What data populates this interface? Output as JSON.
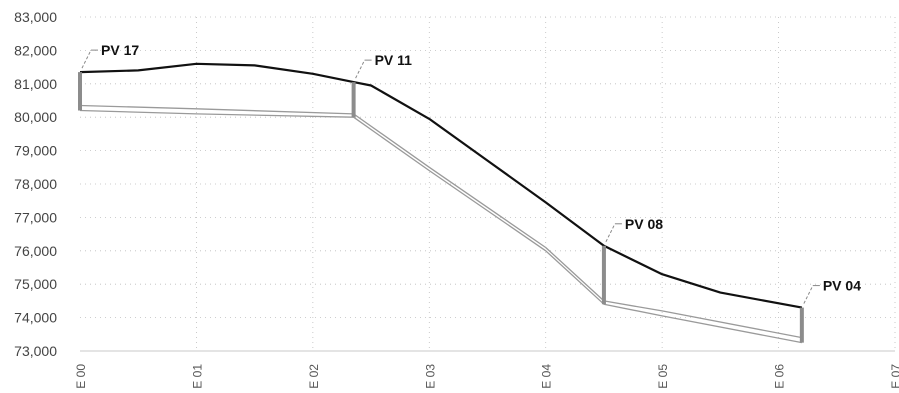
{
  "chart_data": {
    "type": "line",
    "title": "",
    "xlabel": "",
    "ylabel": "",
    "ylim": [
      73000,
      83000
    ],
    "y_ticks": [
      "73,000",
      "74,000",
      "75,000",
      "76,000",
      "77,000",
      "78,000",
      "79,000",
      "80,000",
      "81,000",
      "82,000",
      "83,000"
    ],
    "y_tick_values": [
      73000,
      74000,
      75000,
      76000,
      77000,
      78000,
      79000,
      80000,
      81000,
      82000,
      83000
    ],
    "x_ticks": [
      "E 00",
      "E 01",
      "E 02",
      "E 03",
      "E 04",
      "E 05",
      "E 06",
      "E 07"
    ],
    "x_tick_values": [
      0,
      1,
      2,
      3,
      4,
      5,
      6,
      7
    ],
    "xlim": [
      0,
      7
    ],
    "grid": "vertical-and-horizontal-dotted",
    "series": [
      {
        "role": "top",
        "points": [
          [
            0,
            81350
          ],
          [
            0.5,
            81400
          ],
          [
            1,
            81600
          ],
          [
            1.5,
            81550
          ],
          [
            2,
            81300
          ],
          [
            2.35,
            81050
          ],
          [
            2.5,
            80950
          ],
          [
            3,
            79950
          ],
          [
            3.5,
            78700
          ],
          [
            4,
            77450
          ],
          [
            4.5,
            76150
          ],
          [
            5,
            75300
          ],
          [
            5.5,
            74750
          ],
          [
            6.2,
            74300
          ]
        ]
      },
      {
        "role": "upper-ground",
        "points": [
          [
            0,
            80350
          ],
          [
            1,
            80250
          ],
          [
            2.35,
            80100
          ],
          [
            3,
            78500
          ],
          [
            4,
            76100
          ],
          [
            4.5,
            74500
          ],
          [
            5,
            74200
          ],
          [
            6.2,
            73400
          ]
        ]
      },
      {
        "role": "lower-ground",
        "points": [
          [
            0,
            80200
          ],
          [
            1,
            80100
          ],
          [
            2.35,
            80000
          ],
          [
            3,
            78400
          ],
          [
            4,
            76000
          ],
          [
            4.5,
            74400
          ],
          [
            5,
            74050
          ],
          [
            6.2,
            73250
          ]
        ]
      }
    ],
    "annotations": [
      {
        "label": "PV 17",
        "x": 0,
        "y_top": 81350,
        "y_bottom": 80200
      },
      {
        "label": "PV 11",
        "x": 2.35,
        "y_top": 81050,
        "y_bottom": 80000
      },
      {
        "label": "PV 08",
        "x": 4.5,
        "y_top": 76150,
        "y_bottom": 74400
      },
      {
        "label": "PV 04",
        "x": 6.2,
        "y_top": 74300,
        "y_bottom": 73250
      }
    ],
    "colors": {
      "top_line": "#111111",
      "ground_line": "#9a9a9a",
      "pv_bar": "#8c8c8c",
      "grid": "#bdbdbd"
    }
  }
}
